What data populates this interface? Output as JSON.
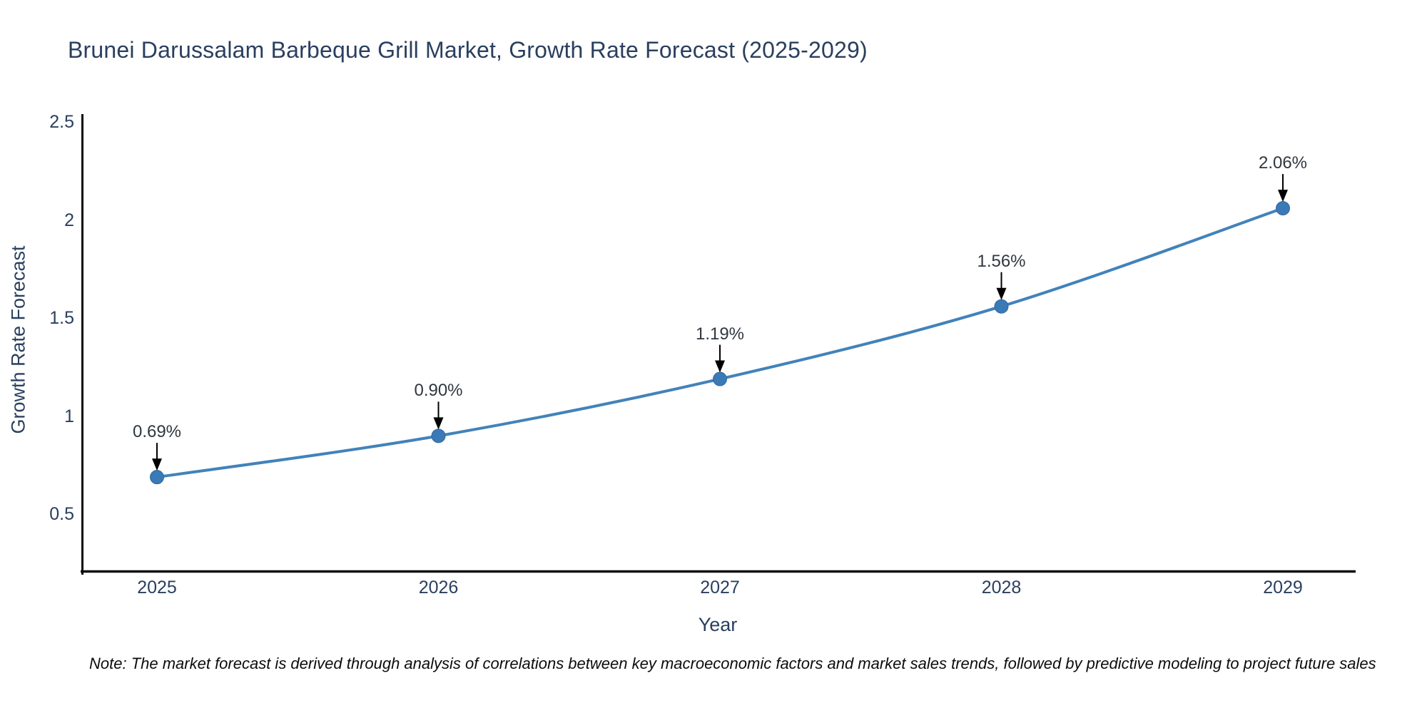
{
  "note": "Note: The market forecast is derived through analysis of correlations between key macroeconomic factors and market sales trends, followed by predictive modeling to project future sales",
  "chart_data": {
    "type": "line",
    "title": "Brunei Darussalam Barbeque Grill Market, Growth Rate Forecast (2025-2029)",
    "xlabel": "Year",
    "ylabel": "Growth Rate Forecast",
    "x": [
      2025,
      2026,
      2027,
      2028,
      2029
    ],
    "y": [
      0.69,
      0.9,
      1.19,
      1.56,
      2.06
    ],
    "point_labels": [
      "0.69%",
      "0.90%",
      "1.19%",
      "1.56%",
      "2.06%"
    ],
    "xticklabels": [
      "2025",
      "2026",
      "2027",
      "2028",
      "2029"
    ],
    "yticks": [
      0.5,
      1,
      1.5,
      2,
      2.5
    ],
    "yticklabels": [
      "0.5",
      "1",
      "1.5",
      "2",
      "2.5"
    ],
    "ylim": [
      0.2,
      2.54
    ],
    "grid": false,
    "legend_position": "none",
    "line_shape": "spline",
    "marker_style": "circle",
    "annotation_arrows": true,
    "colors": {
      "line": "#4282ba",
      "marker": "#3a7ab6",
      "marker_edge": "#31689e",
      "arrow": "#000000",
      "axis_line": "#0b0b0b",
      "title_text": "#2a3f5f",
      "tick_text": "#2a3f5f",
      "annotation_text": "#30373f"
    }
  }
}
